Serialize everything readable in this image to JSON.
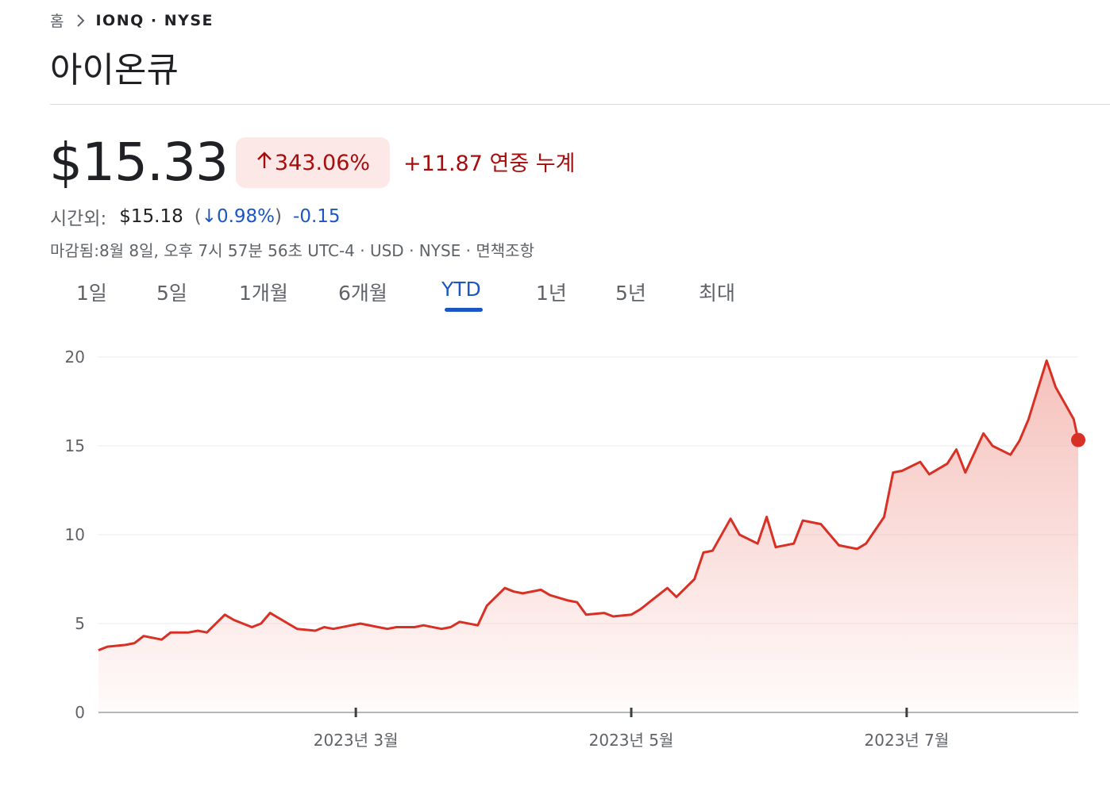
{
  "breadcrumb": {
    "home": "홈",
    "ticker": "IONQ · NYSE"
  },
  "title": "아이온큐",
  "price": "$15.33",
  "change_pct": "343.06%",
  "change_abs": "+11.87 연중 누계",
  "after_hours": {
    "label": "시간외:",
    "price": "$15.18",
    "open_paren": "(",
    "pct": "↓0.98%",
    "close_paren": ")",
    "abs": "-0.15"
  },
  "meta": "마감됨:8월 8일, 오후 7시 57분 56초 UTC-4 · USD · NYSE · 면책조항",
  "tabs": [
    "1일",
    "5일",
    "1개월",
    "6개월",
    "YTD",
    "1년",
    "5년",
    "최대"
  ],
  "active_tab": "YTD",
  "colors": {
    "line": "#d93025",
    "fill": "#f4b6b0",
    "negative": "#a50e0e",
    "negative_bg": "#fce8e6",
    "accent": "#1a57c2"
  },
  "chart_data": {
    "type": "area",
    "title": "",
    "xlabel": "",
    "ylabel": "",
    "ylim": [
      0,
      20
    ],
    "yticks": [
      "0",
      "5",
      "10",
      "15",
      "20"
    ],
    "xticks": [
      "2023년 3월",
      "2023년 5월",
      "2023년 7월"
    ],
    "xtick_dates": [
      "2023-03-01",
      "2023-05-01",
      "2023-07-01"
    ],
    "grid": true,
    "x": [
      "2023-01-03",
      "2023-01-05",
      "2023-01-09",
      "2023-01-11",
      "2023-01-13",
      "2023-01-17",
      "2023-01-19",
      "2023-01-23",
      "2023-01-25",
      "2023-01-27",
      "2023-01-31",
      "2023-02-02",
      "2023-02-06",
      "2023-02-08",
      "2023-02-10",
      "2023-02-14",
      "2023-02-16",
      "2023-02-20",
      "2023-02-22",
      "2023-02-24",
      "2023-02-28",
      "2023-03-02",
      "2023-03-06",
      "2023-03-08",
      "2023-03-10",
      "2023-03-14",
      "2023-03-16",
      "2023-03-20",
      "2023-03-22",
      "2023-03-24",
      "2023-03-28",
      "2023-03-30",
      "2023-04-03",
      "2023-04-05",
      "2023-04-07",
      "2023-04-11",
      "2023-04-13",
      "2023-04-17",
      "2023-04-19",
      "2023-04-21",
      "2023-04-25",
      "2023-04-27",
      "2023-05-01",
      "2023-05-03",
      "2023-05-05",
      "2023-05-09",
      "2023-05-11",
      "2023-05-15",
      "2023-05-17",
      "2023-05-19",
      "2023-05-23",
      "2023-05-25",
      "2023-05-29",
      "2023-05-31",
      "2023-06-02",
      "2023-06-06",
      "2023-06-08",
      "2023-06-12",
      "2023-06-14",
      "2023-06-16",
      "2023-06-20",
      "2023-06-22",
      "2023-06-26",
      "2023-06-28",
      "2023-06-30",
      "2023-07-04",
      "2023-07-06",
      "2023-07-10",
      "2023-07-12",
      "2023-07-14",
      "2023-07-18",
      "2023-07-20",
      "2023-07-24",
      "2023-07-26",
      "2023-07-28",
      "2023-08-01",
      "2023-08-03",
      "2023-08-07",
      "2023-08-08"
    ],
    "values": [
      3.5,
      3.7,
      3.8,
      3.9,
      4.3,
      4.1,
      4.5,
      4.5,
      4.6,
      4.5,
      5.5,
      5.2,
      4.8,
      5.0,
      5.6,
      5.0,
      4.7,
      4.6,
      4.8,
      4.7,
      4.9,
      5.0,
      4.8,
      4.7,
      4.8,
      4.8,
      4.9,
      4.7,
      4.8,
      5.1,
      4.9,
      6.0,
      7.0,
      6.8,
      6.7,
      6.9,
      6.6,
      6.3,
      6.2,
      5.5,
      5.6,
      5.4,
      5.5,
      5.8,
      6.2,
      7.0,
      6.5,
      7.5,
      9.0,
      9.1,
      10.9,
      10.0,
      9.5,
      11.0,
      9.3,
      9.5,
      10.8,
      10.6,
      10.0,
      9.4,
      9.2,
      9.5,
      11.0,
      13.5,
      13.6,
      14.1,
      13.4,
      14.0,
      14.8,
      13.5,
      15.7,
      15.0,
      14.5,
      15.3,
      16.5,
      19.8,
      18.3,
      16.5,
      15.33
    ]
  }
}
